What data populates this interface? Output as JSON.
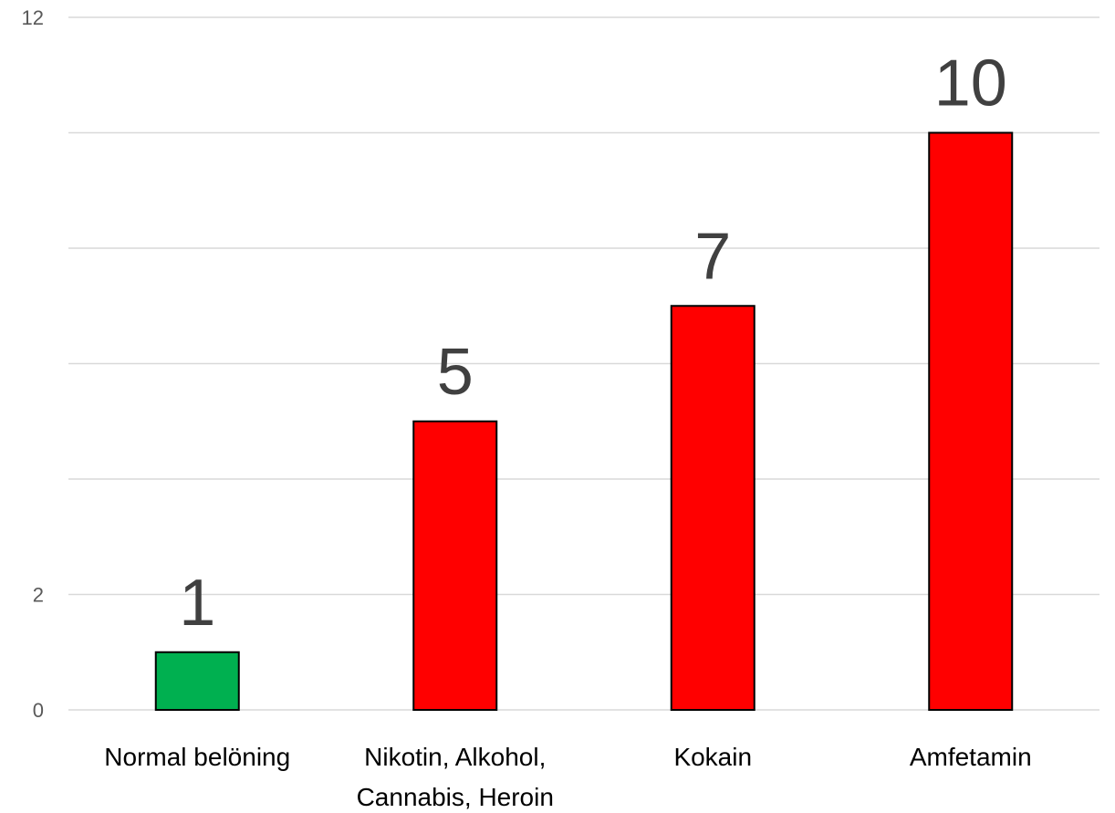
{
  "chart_data": {
    "type": "bar",
    "categories": [
      [
        "Normal belöning"
      ],
      [
        "Nikotin, Alkohol,",
        "Cannabis, Heroin"
      ],
      [
        "Kokain"
      ],
      [
        "Amfetamin"
      ]
    ],
    "values": [
      1,
      5,
      7,
      10
    ],
    "data_labels": [
      "1",
      "5",
      "7",
      "10"
    ],
    "bar_colors": [
      "#00b050",
      "#ff0000",
      "#ff0000",
      "#ff0000"
    ],
    "bar_outline": "#000000",
    "ylim": [
      0,
      12
    ],
    "gridline_values": [
      0,
      2,
      4,
      6,
      8,
      10,
      12
    ],
    "y_tick_labels": [
      {
        "value": 0,
        "label": "0"
      },
      {
        "value": 2,
        "label": "2"
      },
      {
        "value": 12,
        "label": "12"
      }
    ],
    "grid": true,
    "legend": "none",
    "title": "",
    "xlabel": "",
    "ylabel": ""
  }
}
